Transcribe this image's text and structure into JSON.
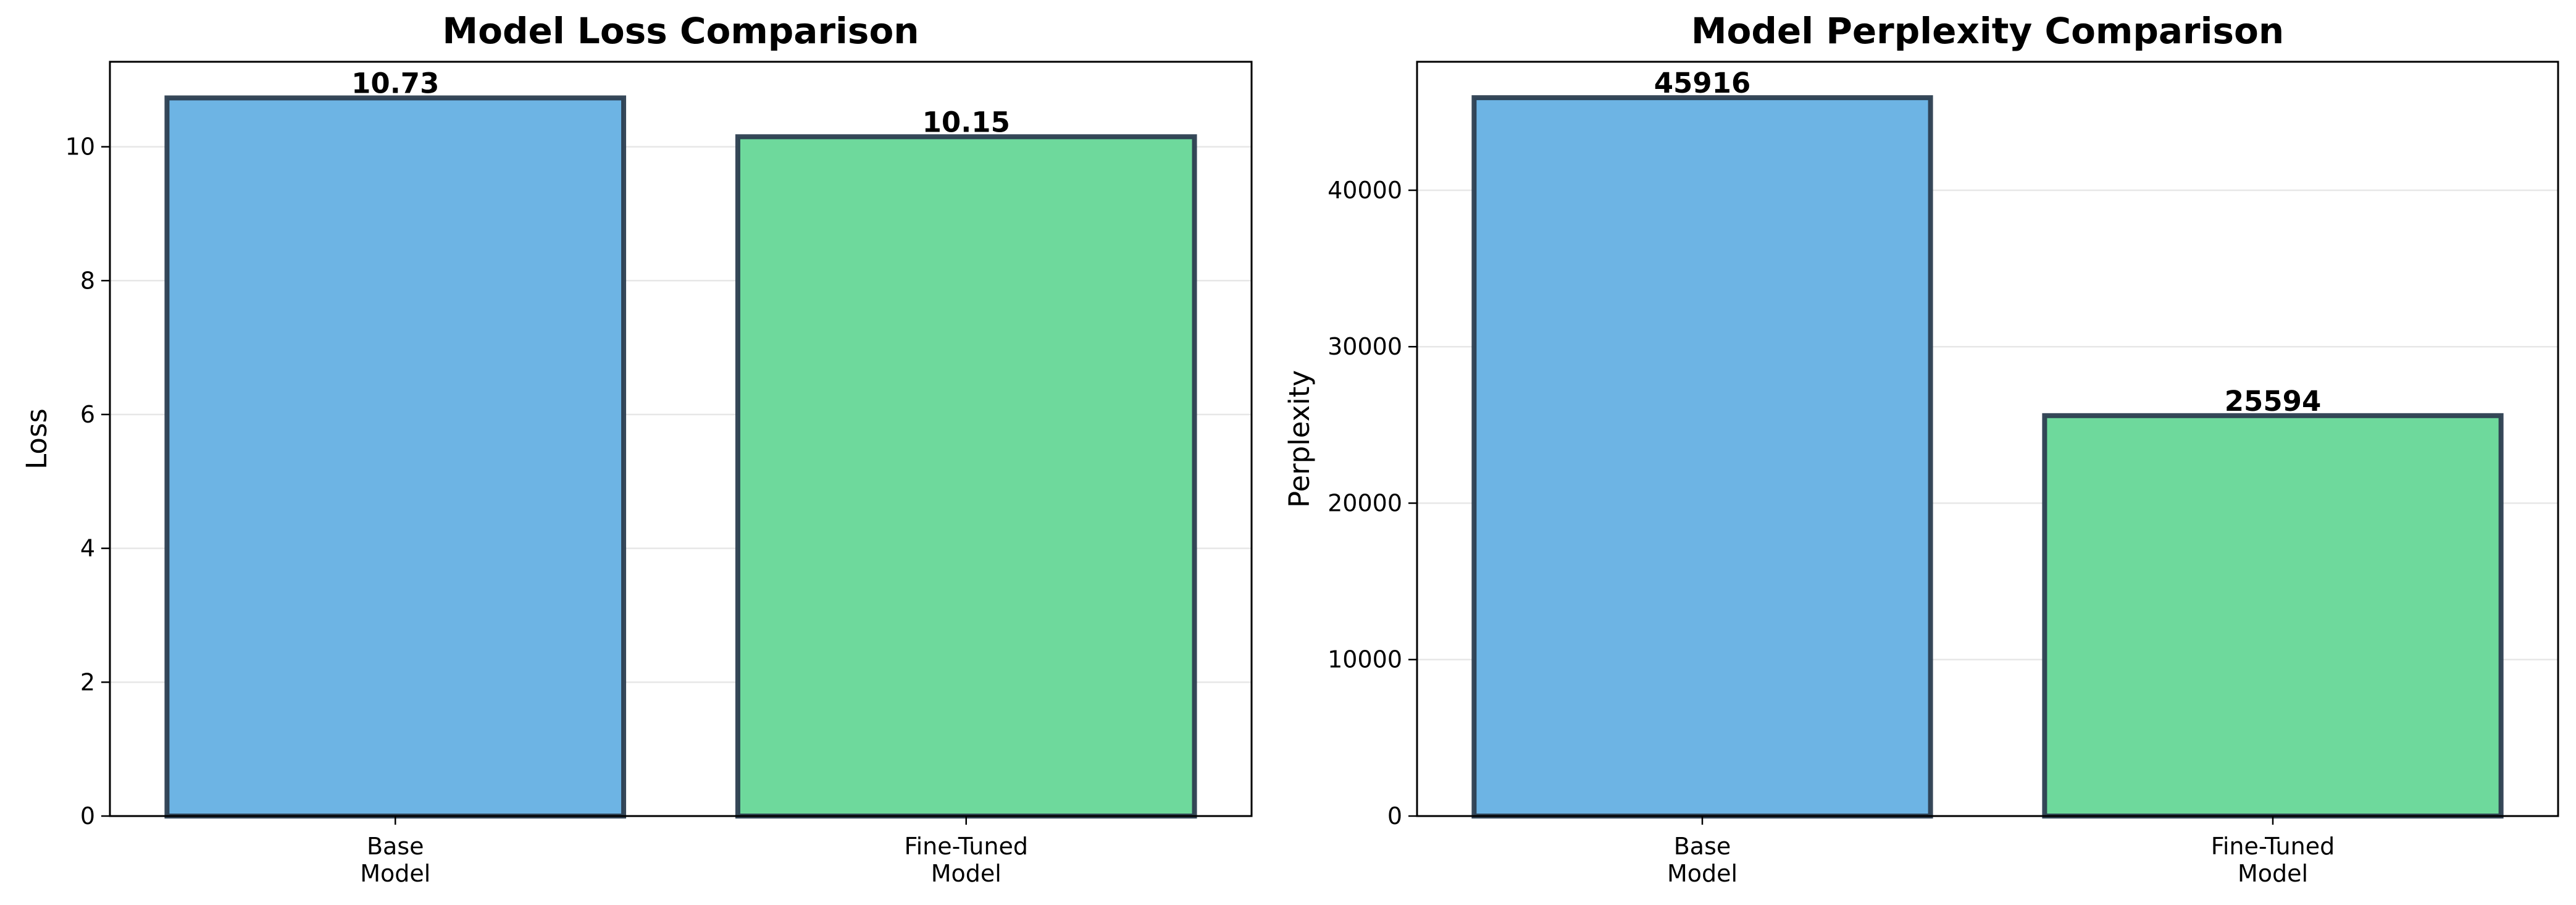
{
  "chart_data": [
    {
      "type": "bar",
      "title": "Model Loss Comparison",
      "xlabel": "",
      "ylabel": "Loss",
      "categories": [
        [
          "Base",
          "Model"
        ],
        [
          "Fine-Tuned",
          "Model"
        ]
      ],
      "values": [
        10.73,
        10.15
      ],
      "value_labels": [
        "10.73",
        "10.15"
      ],
      "colors": [
        "#6db4e4",
        "#6ed99c"
      ],
      "ylim": [
        0,
        11.27
      ],
      "yticks": [
        0,
        2,
        4,
        6,
        8,
        10
      ],
      "ytick_labels": [
        "0",
        "2",
        "4",
        "6",
        "8",
        "10"
      ],
      "grid": "y"
    },
    {
      "type": "bar",
      "title": "Model Perplexity Comparison",
      "xlabel": "",
      "ylabel": "Perplexity",
      "categories": [
        [
          "Base",
          "Model"
        ],
        [
          "Fine-Tuned",
          "Model"
        ]
      ],
      "values": [
        45916,
        25594
      ],
      "value_labels": [
        "45916",
        "25594"
      ],
      "colors": [
        "#6db4e4",
        "#6ed99c"
      ],
      "ylim": [
        0,
        48212
      ],
      "yticks": [
        0,
        10000,
        20000,
        30000,
        40000
      ],
      "ytick_labels": [
        "0",
        "10000",
        "20000",
        "30000",
        "40000"
      ],
      "grid": "y"
    }
  ]
}
